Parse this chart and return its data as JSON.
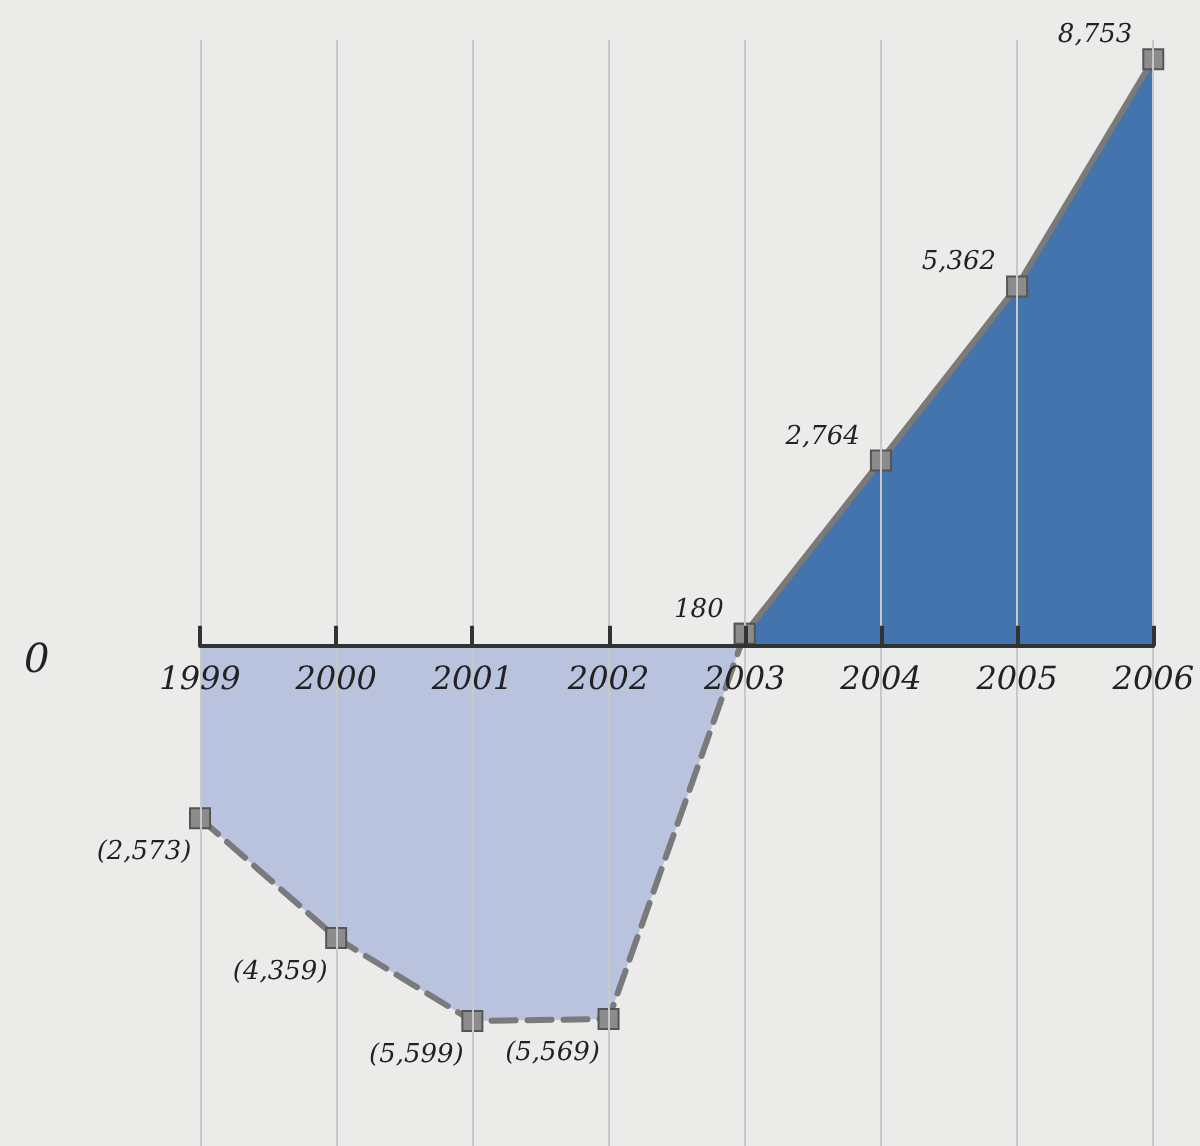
{
  "chart_data": {
    "type": "area",
    "categories": [
      "1999",
      "2000",
      "2001",
      "2002",
      "2003",
      "2004",
      "2005",
      "2006"
    ],
    "grid": "x",
    "marker": "square",
    "annotations": [
      "0"
    ],
    "series": [
      {
        "color": "#b9c3de",
        "line_style": "dashed",
        "values": [
          -2573,
          -4359,
          -5599,
          -5569,
          180,
          null,
          null,
          null
        ],
        "value_labels": [
          "(2,573)",
          "(4,359)",
          "(5,599)",
          "(5,569)",
          null,
          null,
          null,
          null
        ]
      },
      {
        "color": "#4374ae",
        "line_style": "solid",
        "values": [
          null,
          null,
          null,
          null,
          180,
          2764,
          5362,
          8753
        ],
        "value_labels": [
          null,
          null,
          null,
          null,
          "180",
          "2,764",
          "5,362",
          "8,753"
        ]
      }
    ]
  }
}
